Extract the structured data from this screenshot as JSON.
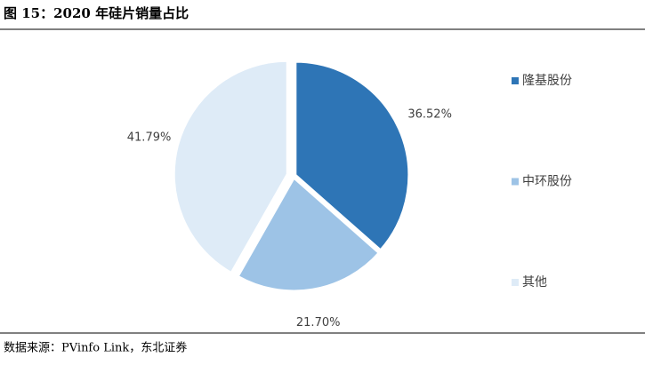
{
  "title": "图 15：2020 年硅片销量占比",
  "chart_data": {
    "type": "pie",
    "categories": [
      "隆基股份",
      "中环股份",
      "其他"
    ],
    "values": [
      36.52,
      21.7,
      41.79
    ],
    "value_labels": [
      "36.52%",
      "21.70%",
      "41.79%"
    ],
    "colors": [
      "#2e75b6",
      "#9dc3e6",
      "#deebf7"
    ],
    "legend": "right"
  },
  "source": "数据来源：PVinfo Link，东北证券"
}
